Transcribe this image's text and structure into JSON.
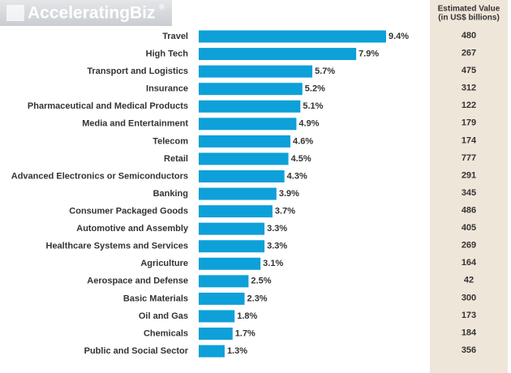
{
  "logo": {
    "name": "AcceleratingBiz",
    "mark": "®"
  },
  "chart_data": {
    "type": "bar",
    "orientation": "horizontal",
    "color": "#0ea0d8",
    "categories": [
      "Travel",
      "High Tech",
      "Transport and Logistics",
      "Insurance",
      "Pharmaceutical and Medical Products",
      "Media and Entertainment",
      "Telecom",
      "Retail",
      "Advanced Electronics or Semiconductors",
      "Banking",
      "Consumer Packaged Goods",
      "Automotive and Assembly",
      "Healthcare Systems and Services",
      "Agriculture",
      "Aerospace and Defense",
      "Basic Materials",
      "Oil and Gas",
      "Chemicals",
      "Public and Social Sector"
    ],
    "values": [
      9.4,
      7.9,
      5.7,
      5.2,
      5.1,
      4.9,
      4.6,
      4.5,
      4.3,
      3.9,
      3.7,
      3.3,
      3.3,
      3.1,
      2.5,
      2.3,
      1.8,
      1.7,
      1.3
    ],
    "value_labels": [
      "9.4%",
      "7.9%",
      "5.7%",
      "5.2%",
      "5.1%",
      "4.9%",
      "4.6%",
      "4.5%",
      "4.3%",
      "3.9%",
      "3.7%",
      "3.3%",
      "3.3%",
      "3.1%",
      "2.5%",
      "2.3%",
      "1.8%",
      "1.7%",
      "1.3%"
    ],
    "estimated_value_header": [
      "Estimated Value",
      "(in US$ billions)"
    ],
    "estimated_values": [
      480,
      267,
      475,
      312,
      122,
      179,
      174,
      777,
      291,
      345,
      486,
      405,
      269,
      164,
      42,
      300,
      173,
      184,
      356
    ]
  }
}
